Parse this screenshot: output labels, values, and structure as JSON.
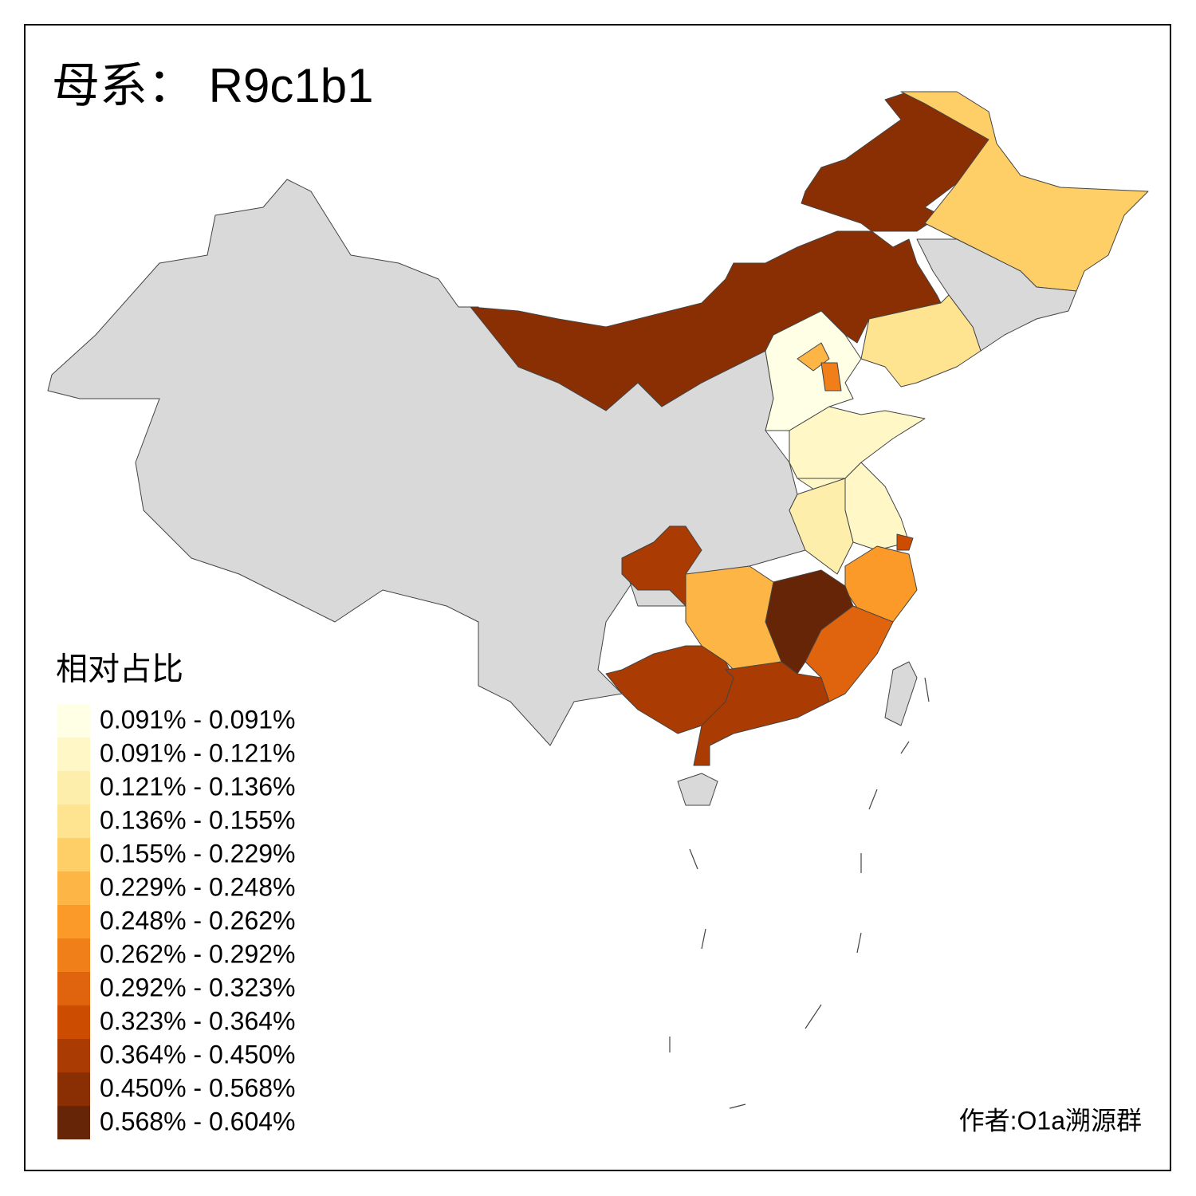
{
  "title": "母系： R9c1b1",
  "legend": {
    "title": "相对占比",
    "items": [
      {
        "label": "0.091% - 0.091%",
        "color": "#ffffe5"
      },
      {
        "label": "0.091% - 0.121%",
        "color": "#fff8c6"
      },
      {
        "label": "0.121% - 0.136%",
        "color": "#feeeab"
      },
      {
        "label": "0.136% - 0.155%",
        "color": "#fee391"
      },
      {
        "label": "0.155% - 0.229%",
        "color": "#fecf66"
      },
      {
        "label": "0.229% - 0.248%",
        "color": "#fdb545"
      },
      {
        "label": "0.248% - 0.262%",
        "color": "#fb9a29"
      },
      {
        "label": "0.262% - 0.292%",
        "color": "#f07f1a"
      },
      {
        "label": "0.292% - 0.323%",
        "color": "#e0640e"
      },
      {
        "label": "0.323% - 0.364%",
        "color": "#cc4c02"
      },
      {
        "label": "0.364% - 0.450%",
        "color": "#a93b03"
      },
      {
        "label": "0.450% - 0.568%",
        "color": "#8a2f04"
      },
      {
        "label": "0.568% - 0.604%",
        "color": "#662506"
      }
    ]
  },
  "author": "作者:O1a溯源群"
}
